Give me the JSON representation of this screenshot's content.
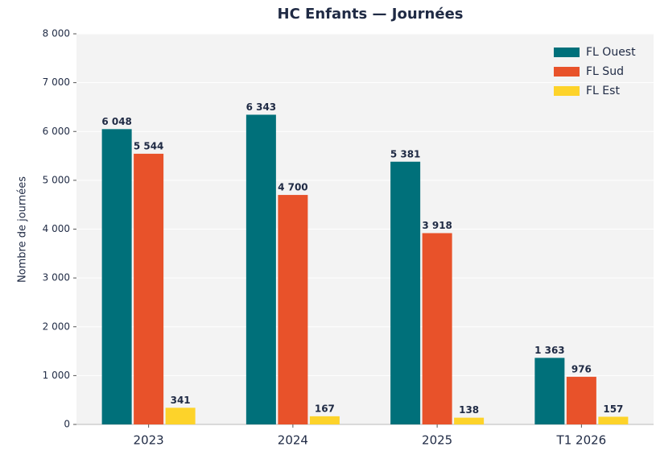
{
  "chart_data": {
    "type": "bar",
    "title": "HC Enfants — Journées",
    "ylabel": "Nombre de journées",
    "categories": [
      "2023",
      "2024",
      "2025",
      "T1 2026"
    ],
    "series": [
      {
        "name": "FL Ouest",
        "color": "#00707a",
        "values": [
          6048,
          6343,
          5381,
          1363
        ],
        "value_labels": [
          "6 048",
          "6 343",
          "5 381",
          "1 363"
        ]
      },
      {
        "name": "FL Sud",
        "color": "#e8522a",
        "values": [
          5544,
          4700,
          3918,
          976
        ],
        "value_labels": [
          "5 544",
          "4 700",
          "3 918",
          "976"
        ]
      },
      {
        "name": "FL Est",
        "color": "#fdd32a",
        "values": [
          341,
          167,
          138,
          157
        ],
        "value_labels": [
          "341",
          "167",
          "138",
          "157"
        ]
      }
    ],
    "ylim": [
      0,
      8000
    ],
    "yticks": [
      0,
      {
        "value": 1000,
        "label": "1 000"
      },
      {
        "value": 2000,
        "label": "2 000"
      },
      {
        "value": 3000,
        "label": "3 000"
      },
      {
        "value": 4000,
        "label": "4 000"
      },
      {
        "value": 5000,
        "label": "5 000"
      },
      {
        "value": 6000,
        "label": "6 000"
      },
      {
        "value": 7000,
        "label": "7 000"
      },
      {
        "value": 8000,
        "label": "8 000"
      }
    ],
    "grid": true,
    "legend": "upper right"
  }
}
